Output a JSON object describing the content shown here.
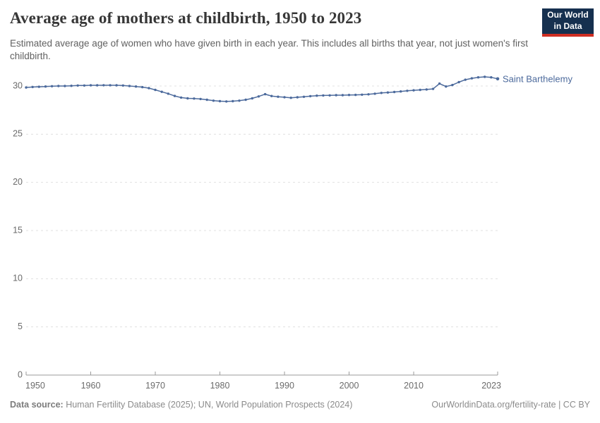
{
  "header": {
    "title": "Average age of mothers at childbirth, 1950 to 2023",
    "subtitle": "Estimated average age of women who have given birth in each year. This includes all births that year, not just women's first childbirth.",
    "logo": {
      "line1": "Our World",
      "line2": "in Data",
      "bg_color": "#16304f",
      "accent_color": "#cf2e22"
    }
  },
  "chart_data": {
    "type": "line",
    "title": "Average age of mothers at childbirth, 1950 to 2023",
    "xlabel": "",
    "ylabel": "",
    "xlim": [
      1950,
      2023
    ],
    "ylim": [
      0,
      30
    ],
    "x_ticks": [
      1950,
      1960,
      1970,
      1980,
      1990,
      2000,
      2010,
      2023
    ],
    "y_ticks": [
      0,
      5,
      10,
      15,
      20,
      25,
      30
    ],
    "grid": "horizontal-dashed",
    "legend_position": "end-of-line-label",
    "colors": {
      "line": "#4c6a9c",
      "grid": "#e0e0e0",
      "axis": "#9b9b9b",
      "tick_text": "#6b6b6b"
    },
    "series": [
      {
        "name": "Saint Barthelemy",
        "color": "#4c6a9c",
        "start_year": 1950,
        "end_year": 2023,
        "years": [
          1950,
          1951,
          1952,
          1953,
          1954,
          1955,
          1956,
          1957,
          1958,
          1959,
          1960,
          1961,
          1962,
          1963,
          1964,
          1965,
          1966,
          1967,
          1968,
          1969,
          1970,
          1971,
          1972,
          1973,
          1974,
          1975,
          1976,
          1977,
          1978,
          1979,
          1980,
          1981,
          1982,
          1983,
          1984,
          1985,
          1986,
          1987,
          1988,
          1989,
          1990,
          1991,
          1992,
          1993,
          1994,
          1995,
          1996,
          1997,
          1998,
          1999,
          2000,
          2001,
          2002,
          2003,
          2004,
          2005,
          2006,
          2007,
          2008,
          2009,
          2010,
          2011,
          2012,
          2013,
          2014,
          2015,
          2016,
          2017,
          2018,
          2019,
          2020,
          2021,
          2022,
          2023
        ],
        "values": [
          29.85,
          29.9,
          29.92,
          29.95,
          29.98,
          30.0,
          30.0,
          30.02,
          30.05,
          30.05,
          30.07,
          30.07,
          30.08,
          30.08,
          30.07,
          30.05,
          30.0,
          29.95,
          29.88,
          29.78,
          29.6,
          29.4,
          29.2,
          28.97,
          28.8,
          28.72,
          28.7,
          28.65,
          28.57,
          28.48,
          28.43,
          28.4,
          28.43,
          28.48,
          28.57,
          28.72,
          28.92,
          29.15,
          28.96,
          28.89,
          28.84,
          28.78,
          28.83,
          28.88,
          28.95,
          29.0,
          29.02,
          29.03,
          29.05,
          29.05,
          29.07,
          29.08,
          29.1,
          29.14,
          29.2,
          29.28,
          29.33,
          29.38,
          29.44,
          29.5,
          29.55,
          29.6,
          29.64,
          29.7,
          30.25,
          29.95,
          30.1,
          30.4,
          30.65,
          30.8,
          30.9,
          30.95,
          30.9,
          30.75
        ]
      }
    ]
  },
  "footer": {
    "source_label": "Data source:",
    "source_text": " Human Fertility Database (2025); UN, World Population Prospects (2024)",
    "link_text": "OurWorldinData.org/fertility-rate | CC BY"
  }
}
